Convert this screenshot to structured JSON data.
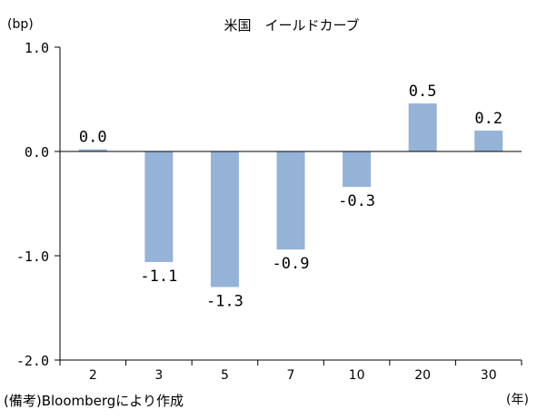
{
  "chart_data": {
    "type": "bar",
    "title": "米国　イールドカーブ",
    "ylabel": "(bp)",
    "xlabel": "(年)",
    "categories": [
      "2",
      "3",
      "5",
      "7",
      "10",
      "20",
      "30"
    ],
    "values": [
      0.02,
      -1.06,
      -1.3,
      -0.94,
      -0.34,
      0.46,
      0.2
    ],
    "data_labels": [
      "0.0",
      "-1.1",
      "-1.3",
      "-0.9",
      "-0.3",
      "0.5",
      "0.2"
    ],
    "ylim": [
      -2.0,
      1.0
    ],
    "yticks": [
      1.0,
      0.0,
      -1.0,
      -2.0
    ],
    "ytick_labels": [
      "1.0",
      "0.0",
      "-1.0",
      "-2.0"
    ],
    "bar_color": "#95b3d7",
    "grid": false
  },
  "footnote": "(備考)Bloombergにより作成"
}
